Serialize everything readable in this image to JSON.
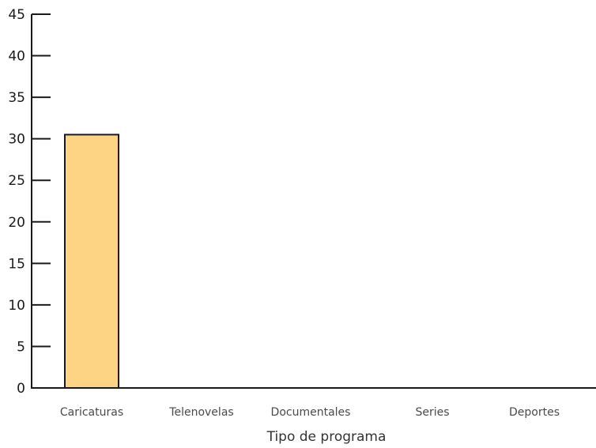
{
  "chart_data": {
    "type": "bar",
    "title": "",
    "xlabel": "Tipo de programa",
    "ylabel": "",
    "categories": [
      "Caricaturas",
      "Telenovelas",
      "Documentales",
      "Series",
      "Deportes"
    ],
    "values": [
      30.5,
      0,
      0,
      0,
      0
    ],
    "ylim": [
      0,
      45
    ],
    "yticks": [
      0,
      5,
      10,
      15,
      20,
      25,
      30,
      35,
      40,
      45
    ],
    "grid": false,
    "legend": "none",
    "colors": {
      "bar_fill": "#fdd484",
      "bar_stroke": "#1a1a1a",
      "axis": "#1a1a1a"
    }
  }
}
